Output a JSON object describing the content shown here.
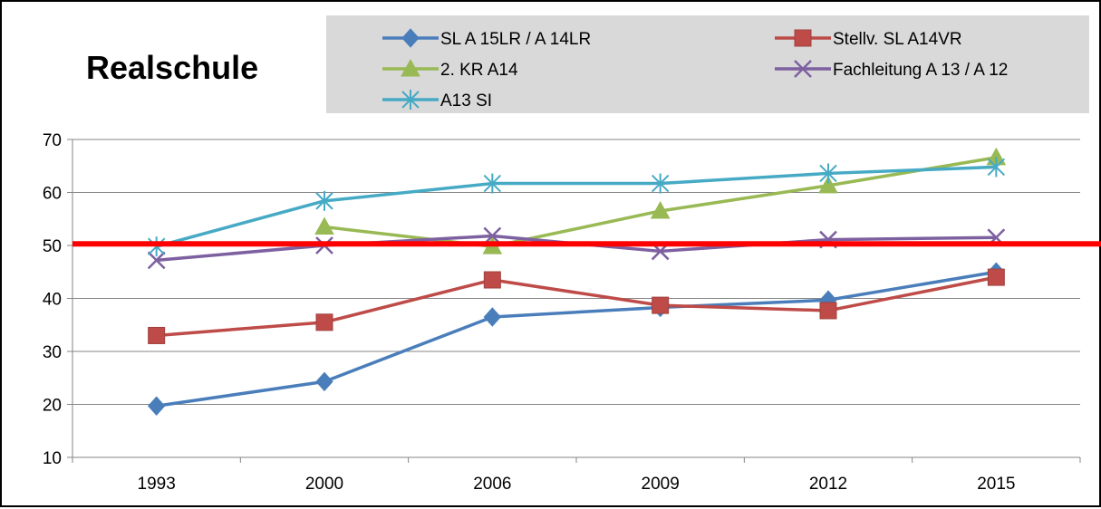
{
  "chart_data": {
    "type": "line",
    "title": "Realschule",
    "x": [
      "1993",
      "2000",
      "2006",
      "2009",
      "2012",
      "2015"
    ],
    "ylim": [
      10,
      70
    ],
    "yticks": [
      10,
      20,
      30,
      40,
      50,
      60,
      70
    ],
    "grid": true,
    "legend_position": "top-right",
    "reference_line": {
      "value": 50.3,
      "color": "#ff0000"
    },
    "series": [
      {
        "name": "SL A 15LR / A 14LR",
        "color": "#4a7ebb",
        "marker": "diamond",
        "values": [
          19.7,
          24.3,
          36.5,
          38.3,
          39.7,
          45.0
        ]
      },
      {
        "name": "Stellv. SL A14VR",
        "color": "#be4b48",
        "marker": "square",
        "values": [
          33.0,
          35.5,
          43.5,
          38.7,
          37.7,
          44.0
        ]
      },
      {
        "name": "2. KR  A14",
        "color": "#98b954",
        "marker": "triangle",
        "values": [
          null,
          53.5,
          49.8,
          56.5,
          61.3,
          66.6
        ]
      },
      {
        "name": "Fachleitung A 13 / A 12",
        "color": "#7d60a0",
        "marker": "x",
        "values": [
          47.2,
          50.0,
          51.8,
          48.9,
          51.1,
          51.5
        ]
      },
      {
        "name": "A13 SI",
        "color": "#46aac5",
        "marker": "star",
        "values": [
          49.8,
          58.4,
          61.7,
          61.7,
          63.6,
          64.8
        ]
      }
    ]
  }
}
